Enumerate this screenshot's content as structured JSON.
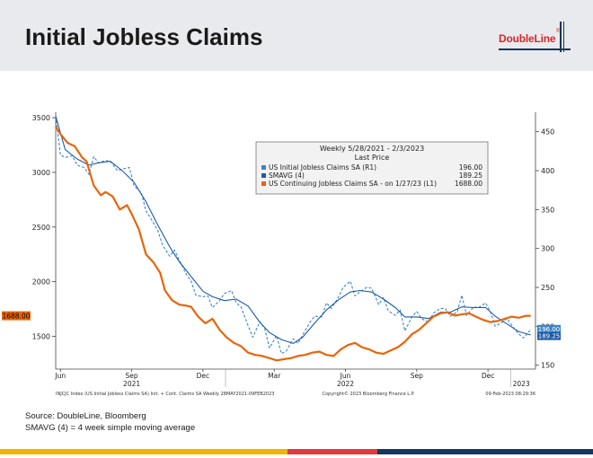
{
  "slide": {
    "title": "Initial Jobless Claims",
    "logo_text": "DoubleLine",
    "logo_mark": "®"
  },
  "footer": {
    "source": "Source: DoubleLine, Bloomberg",
    "note": "SMAVG (4) = 4 week simple moving average"
  },
  "colors": {
    "initial": "#3a86c8",
    "smavg": "#1c5aa6",
    "continuing": "#e8650a",
    "bar_yellow": "#f0b400",
    "bar_red": "#e03a3a",
    "bar_navy": "#17365d"
  },
  "chart_data": {
    "type": "line",
    "legend": {
      "title": "Weekly 5/28/2021 - 2/3/2023",
      "subtitle": "Last Price",
      "entries": [
        {
          "name": "US Initial Jobless Claims SA  (R1)",
          "value": "196.00"
        },
        {
          "name": "SMAVG (4)",
          "value": "189.25"
        },
        {
          "name": "US Continuing Jobless Claims SA -  on 1/27/23  (L1)",
          "value": "1688.00"
        }
      ]
    },
    "left_axis": {
      "min": 1200,
      "max": 3550,
      "ticks": [
        "3500",
        "3000",
        "2500",
        "2000",
        "1500"
      ],
      "tick_values": [
        3500,
        3000,
        2500,
        2000,
        1500
      ]
    },
    "right_axis": {
      "min": 145,
      "max": 475,
      "ticks": [
        "450",
        "400",
        "350",
        "300",
        "250",
        "200",
        "150"
      ],
      "tick_values": [
        450,
        400,
        350,
        300,
        250,
        200,
        150
      ]
    },
    "x_ticks": [
      {
        "label": "Jun",
        "month": 1.1
      },
      {
        "label": "Sep",
        "month": 4.1
      },
      {
        "label": "Dec",
        "month": 7.1
      },
      {
        "label": "Mar",
        "month": 10.1
      },
      {
        "label": "Jun",
        "month": 13.1
      },
      {
        "label": "Sep",
        "month": 16.1
      },
      {
        "label": "Dec",
        "month": 19.1
      }
    ],
    "x_year_labels": [
      {
        "label": "2021",
        "month": 4.1
      },
      {
        "label": "2022",
        "month": 13.1
      },
      {
        "label": "2023",
        "month": 20.5
      }
    ],
    "x_range": [
      0.9,
      21.1
    ],
    "series": [
      {
        "name": "US Initial Jobless Claims SA",
        "axis": "right",
        "style": "dashed",
        "x": [
          0.9,
          1.1,
          1.3,
          1.6,
          1.8,
          2.1,
          2.3,
          2.5,
          2.7,
          3.0,
          3.2,
          3.5,
          3.7,
          4.0,
          4.2,
          4.5,
          4.7,
          4.9,
          5.2,
          5.4,
          5.7,
          5.9,
          6.1,
          6.4,
          6.6,
          6.8,
          7.1,
          7.3,
          7.5,
          7.8,
          8.0,
          8.3,
          8.5,
          8.7,
          9.0,
          9.2,
          9.5,
          9.7,
          9.9,
          10.2,
          10.4,
          10.6,
          10.9,
          11.1,
          11.3,
          11.6,
          11.8,
          12.1,
          12.3,
          12.5,
          12.8,
          13.0,
          13.3,
          13.5,
          13.7,
          14.0,
          14.2,
          14.5,
          14.7,
          14.9,
          15.2,
          15.4,
          15.6,
          15.9,
          16.1,
          16.3,
          16.6,
          16.8,
          17.1,
          17.3,
          17.5,
          17.8,
          18.0,
          18.2,
          18.5,
          18.7,
          19.0,
          19.2,
          19.4,
          19.7,
          19.9,
          20.2,
          20.4,
          20.6,
          20.9
        ],
        "values": [
          470,
          420,
          417,
          419,
          407,
          404,
          395,
          418,
          410,
          413,
          412,
          400,
          402,
          404,
          380,
          372,
          348,
          339,
          323,
          304,
          290,
          298,
          285,
          267,
          258,
          240,
          238,
          239,
          224,
          233,
          242,
          246,
          230,
          225,
          201,
          186,
          206,
          197,
          172,
          188,
          165,
          168,
          184,
          178,
          189,
          205,
          213,
          212,
          230,
          223,
          237,
          250,
          258,
          239,
          244,
          250,
          249,
          228,
          237,
          220,
          214,
          221,
          194,
          212,
          219,
          210,
          205,
          217,
          223,
          223,
          213,
          218,
          240,
          214,
          225,
          224,
          230,
          219,
          200,
          205,
          210,
          197,
          190,
          185,
          196
        ]
      },
      {
        "name": "SMAVG (4)",
        "axis": "right",
        "style": "solid",
        "x": [
          0.9,
          1.3,
          1.8,
          2.3,
          2.7,
          3.2,
          3.7,
          4.2,
          4.7,
          5.2,
          5.7,
          6.1,
          6.6,
          7.1,
          7.5,
          8.0,
          8.5,
          9.0,
          9.5,
          9.9,
          10.4,
          10.9,
          11.3,
          11.8,
          12.3,
          12.8,
          13.3,
          13.7,
          14.2,
          14.7,
          15.2,
          15.6,
          16.1,
          16.6,
          17.1,
          17.5,
          18.0,
          18.5,
          19.0,
          19.4,
          19.9,
          20.4,
          20.9
        ],
        "values": [
          470,
          427,
          415,
          407,
          410,
          412,
          400,
          385,
          360,
          330,
          302,
          283,
          264,
          245,
          238,
          233,
          235,
          226,
          205,
          192,
          183,
          178,
          186,
          204,
          221,
          234,
          244,
          246,
          244,
          235,
          224,
          212,
          212,
          210,
          218,
          218,
          225,
          224,
          224,
          213,
          203,
          193,
          189
        ]
      },
      {
        "name": "US Continuing Jobless Claims SA",
        "axis": "left",
        "style": "solid",
        "x": [
          0.9,
          1.1,
          1.4,
          1.7,
          2.0,
          2.2,
          2.5,
          2.8,
          3.0,
          3.3,
          3.6,
          3.9,
          4.1,
          4.4,
          4.7,
          5.0,
          5.3,
          5.5,
          5.8,
          6.1,
          6.4,
          6.6,
          6.9,
          7.2,
          7.5,
          7.8,
          8.1,
          8.4,
          8.7,
          9.0,
          9.3,
          9.6,
          9.9,
          10.2,
          10.5,
          10.8,
          11.1,
          11.4,
          11.7,
          12.0,
          12.3,
          12.6,
          12.9,
          13.2,
          13.5,
          13.8,
          14.1,
          14.4,
          14.7,
          15.0,
          15.3,
          15.6,
          15.9,
          16.2,
          16.5,
          16.8,
          17.1,
          17.4,
          17.7,
          18.0,
          18.3,
          18.6,
          18.9,
          19.2,
          19.5,
          19.8,
          20.1,
          20.4,
          20.7,
          20.9
        ],
        "values": [
          3420,
          3350,
          3270,
          3240,
          3140,
          3100,
          2880,
          2790,
          2820,
          2780,
          2660,
          2700,
          2620,
          2480,
          2250,
          2180,
          2080,
          1920,
          1830,
          1790,
          1780,
          1770,
          1680,
          1620,
          1660,
          1560,
          1490,
          1440,
          1410,
          1350,
          1330,
          1320,
          1300,
          1280,
          1290,
          1300,
          1320,
          1330,
          1350,
          1360,
          1330,
          1320,
          1380,
          1420,
          1440,
          1400,
          1380,
          1350,
          1340,
          1370,
          1400,
          1450,
          1520,
          1560,
          1620,
          1680,
          1710,
          1720,
          1690,
          1700,
          1710,
          1680,
          1650,
          1630,
          1640,
          1660,
          1680,
          1670,
          1688,
          1688
        ]
      }
    ],
    "last_value_labels": {
      "left": "1688.00",
      "right_top": "196.00",
      "right_bottom": "189.25"
    },
    "caption_left": "INJCJC Index (US Initial Jobless Claims SA) Init. + Cont. Claims SA  Weekly 28MAY2021-09FEB2023",
    "caption_center": "Copyright© 2023 Bloomberg Finance L.P.",
    "caption_right": "09-Feb-2023 08:29:36"
  }
}
